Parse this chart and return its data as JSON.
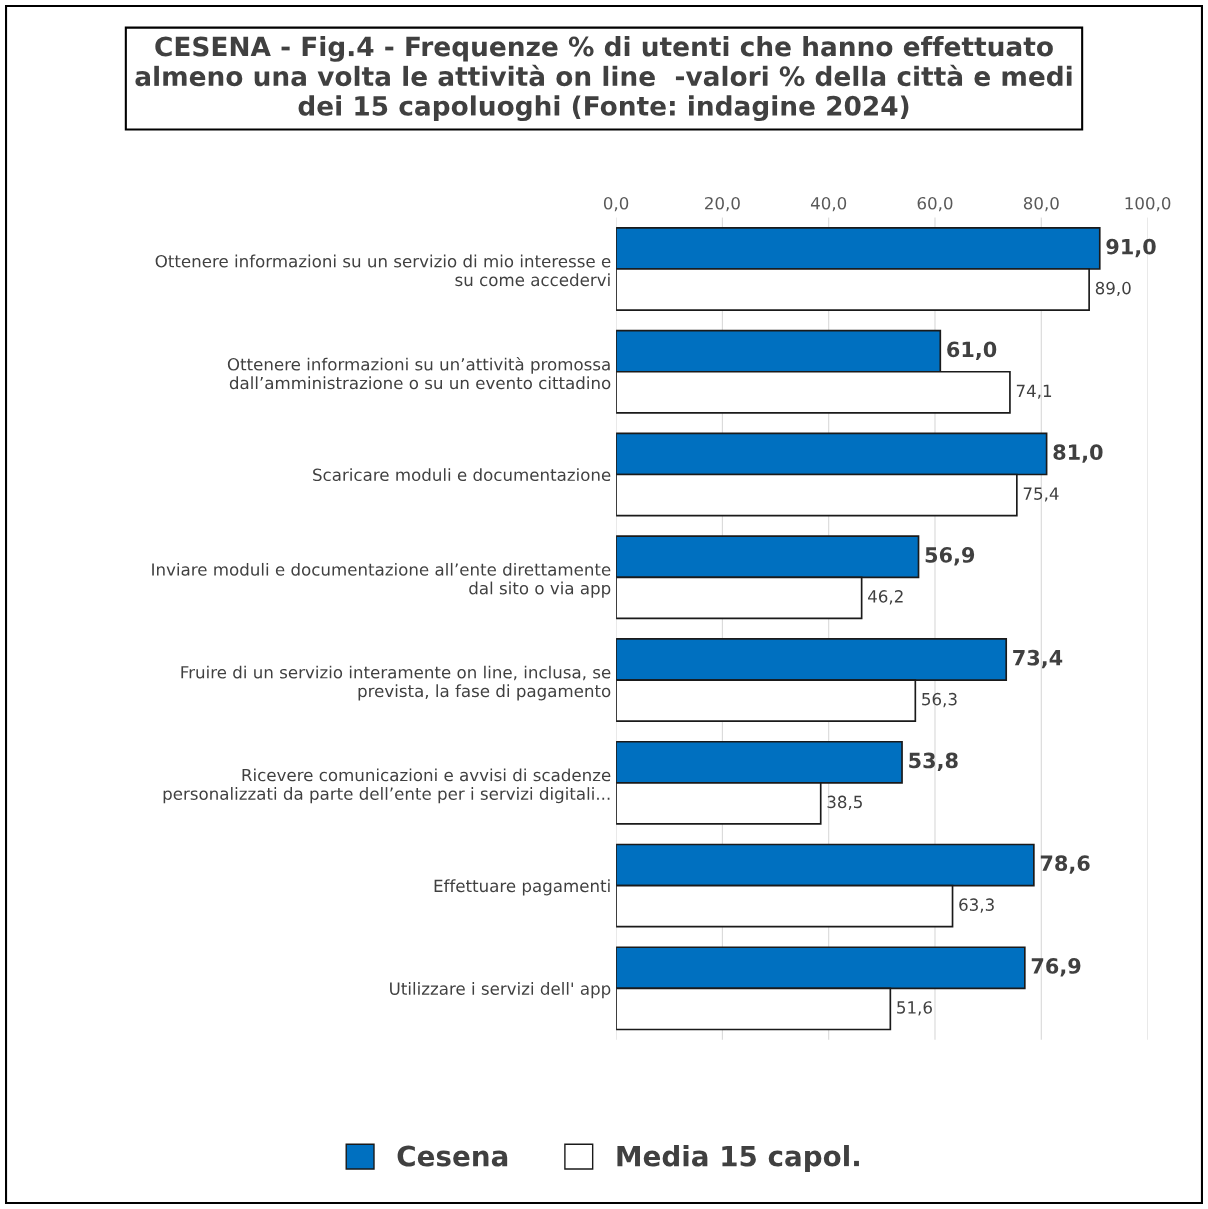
{
  "chart_data": {
    "type": "bar",
    "orientation": "horizontal",
    "title": "CESENA - Fig.4 - Frequenze % di utenti che hanno effettuato almeno una volta le attività on line  -valori % della città e medi dei 15 capoluoghi (Fonte: indagine 2024)",
    "categories": [
      "Ottenere informazioni su un servizio di mio interesse e\nsu come accedervi",
      "Ottenere informazioni su un’attività promossa\ndall’amministrazione o su un evento cittadino",
      "Scaricare moduli e documentazione",
      "Inviare moduli e documentazione all’ente direttamente\ndal sito o via app",
      "Fruire di un servizio interamente on line, inclusa, se\nprevista, la fase di pagamento",
      "Ricevere comunicazioni e avvisi di scadenze\npersonalizzati da parte dell’ente per i servizi digitali...",
      "Effettuare pagamenti",
      "Utilizzare i servizi dell' app"
    ],
    "series": [
      {
        "name": "Cesena",
        "color": "#0070c0",
        "values": [
          91.0,
          61.0,
          81.0,
          56.9,
          73.4,
          53.8,
          78.6,
          76.9
        ],
        "value_labels": [
          "91,0",
          "61,0",
          "81,0",
          "56,9",
          "73,4",
          "53,8",
          "78,6",
          "76,9"
        ]
      },
      {
        "name": "Media 15 capol.",
        "color": "#ffffff",
        "values": [
          89.0,
          74.1,
          75.4,
          46.2,
          56.3,
          38.5,
          63.3,
          51.6
        ],
        "value_labels": [
          "89,0",
          "74,1",
          "75,4",
          "46,2",
          "56,3",
          "38,5",
          "63,3",
          "51,6"
        ]
      }
    ],
    "xlim": [
      0,
      100
    ],
    "xticks": [
      {
        "value": 0,
        "label": "0,0"
      },
      {
        "value": 20,
        "label": "20,0"
      },
      {
        "value": 40,
        "label": "40,0"
      },
      {
        "value": 60,
        "label": "60,0"
      },
      {
        "value": 80,
        "label": "80,0"
      },
      {
        "value": 100,
        "label": "100,0"
      }
    ],
    "grid": "x",
    "legend": "bottom"
  }
}
